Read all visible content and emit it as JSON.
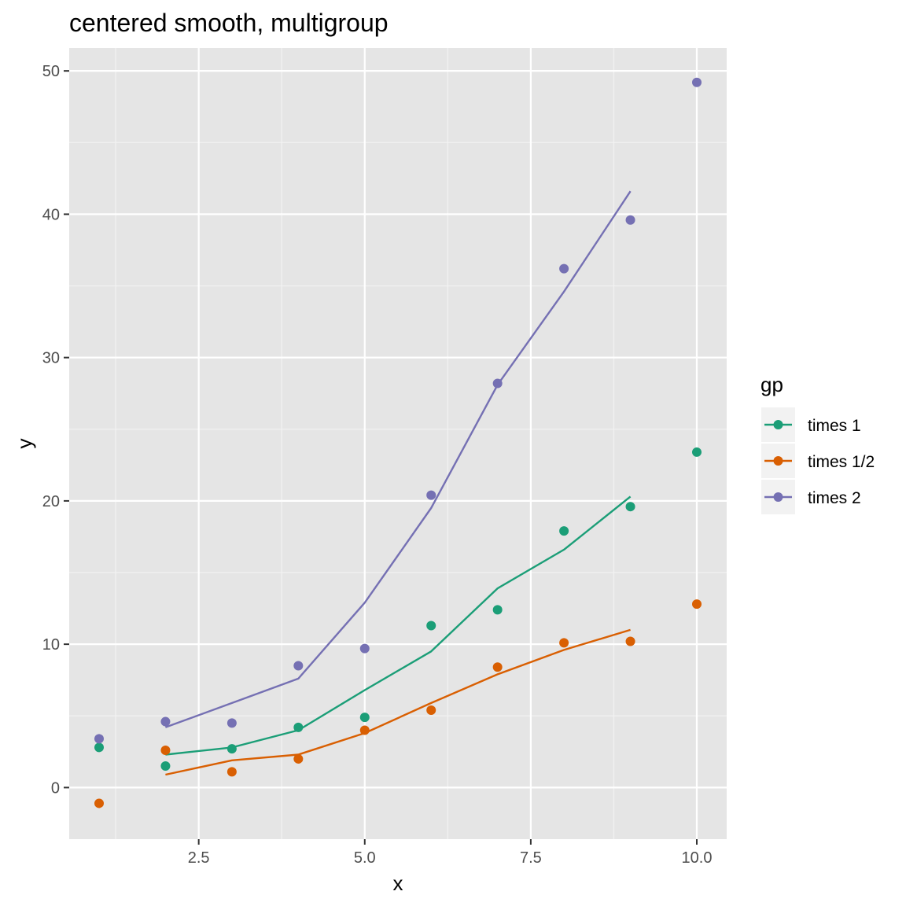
{
  "chart_data": {
    "type": "scatter",
    "title": "centered smooth, multigroup",
    "xlabel": "x",
    "ylabel": "y",
    "xlim": [
      0.55,
      10.45
    ],
    "ylim": [
      -3.6,
      51.6
    ],
    "xticks": [
      2.5,
      5.0,
      7.5,
      10.0
    ],
    "xtick_labels": [
      "2.5",
      "5.0",
      "7.5",
      "10.0"
    ],
    "yticks": [
      0,
      10,
      20,
      30,
      40,
      50
    ],
    "ytick_labels": [
      "0",
      "10",
      "20",
      "30",
      "40",
      "50"
    ],
    "grid": true,
    "legend": {
      "title": "gp",
      "position": "right"
    },
    "series": [
      {
        "name": "times 1",
        "color": "#1b9e77",
        "points": {
          "x": [
            1,
            2,
            3,
            4,
            5,
            6,
            7,
            8,
            9,
            10
          ],
          "y": [
            2.8,
            1.5,
            2.7,
            4.2,
            4.9,
            11.3,
            12.4,
            17.9,
            19.6,
            23.4
          ]
        },
        "smooth": {
          "x": [
            2,
            3,
            4,
            5,
            6,
            7,
            8,
            9
          ],
          "y": [
            2.3,
            2.8,
            4.0,
            6.8,
            9.5,
            13.9,
            16.6,
            20.3
          ]
        }
      },
      {
        "name": "times 1/2",
        "color": "#d95f02",
        "points": {
          "x": [
            1,
            2,
            3,
            4,
            5,
            6,
            7,
            8,
            9,
            10
          ],
          "y": [
            -1.1,
            2.6,
            1.1,
            2.0,
            4.0,
            5.4,
            8.4,
            10.1,
            10.2,
            12.8
          ]
        },
        "smooth": {
          "x": [
            2,
            3,
            4,
            5,
            6,
            7,
            8,
            9
          ],
          "y": [
            0.9,
            1.9,
            2.3,
            3.8,
            5.9,
            7.9,
            9.6,
            11.0
          ]
        }
      },
      {
        "name": "times 2",
        "color": "#7570b3",
        "points": {
          "x": [
            1,
            2,
            3,
            4,
            5,
            6,
            7,
            8,
            9,
            10
          ],
          "y": [
            3.4,
            4.6,
            4.5,
            8.5,
            9.7,
            20.4,
            28.2,
            36.2,
            39.6,
            49.2
          ]
        },
        "smooth": {
          "x": [
            2,
            3,
            4,
            5,
            6,
            7,
            8,
            9
          ],
          "y": [
            4.2,
            5.9,
            7.6,
            12.9,
            19.5,
            28.1,
            34.6,
            41.6
          ]
        }
      }
    ]
  }
}
